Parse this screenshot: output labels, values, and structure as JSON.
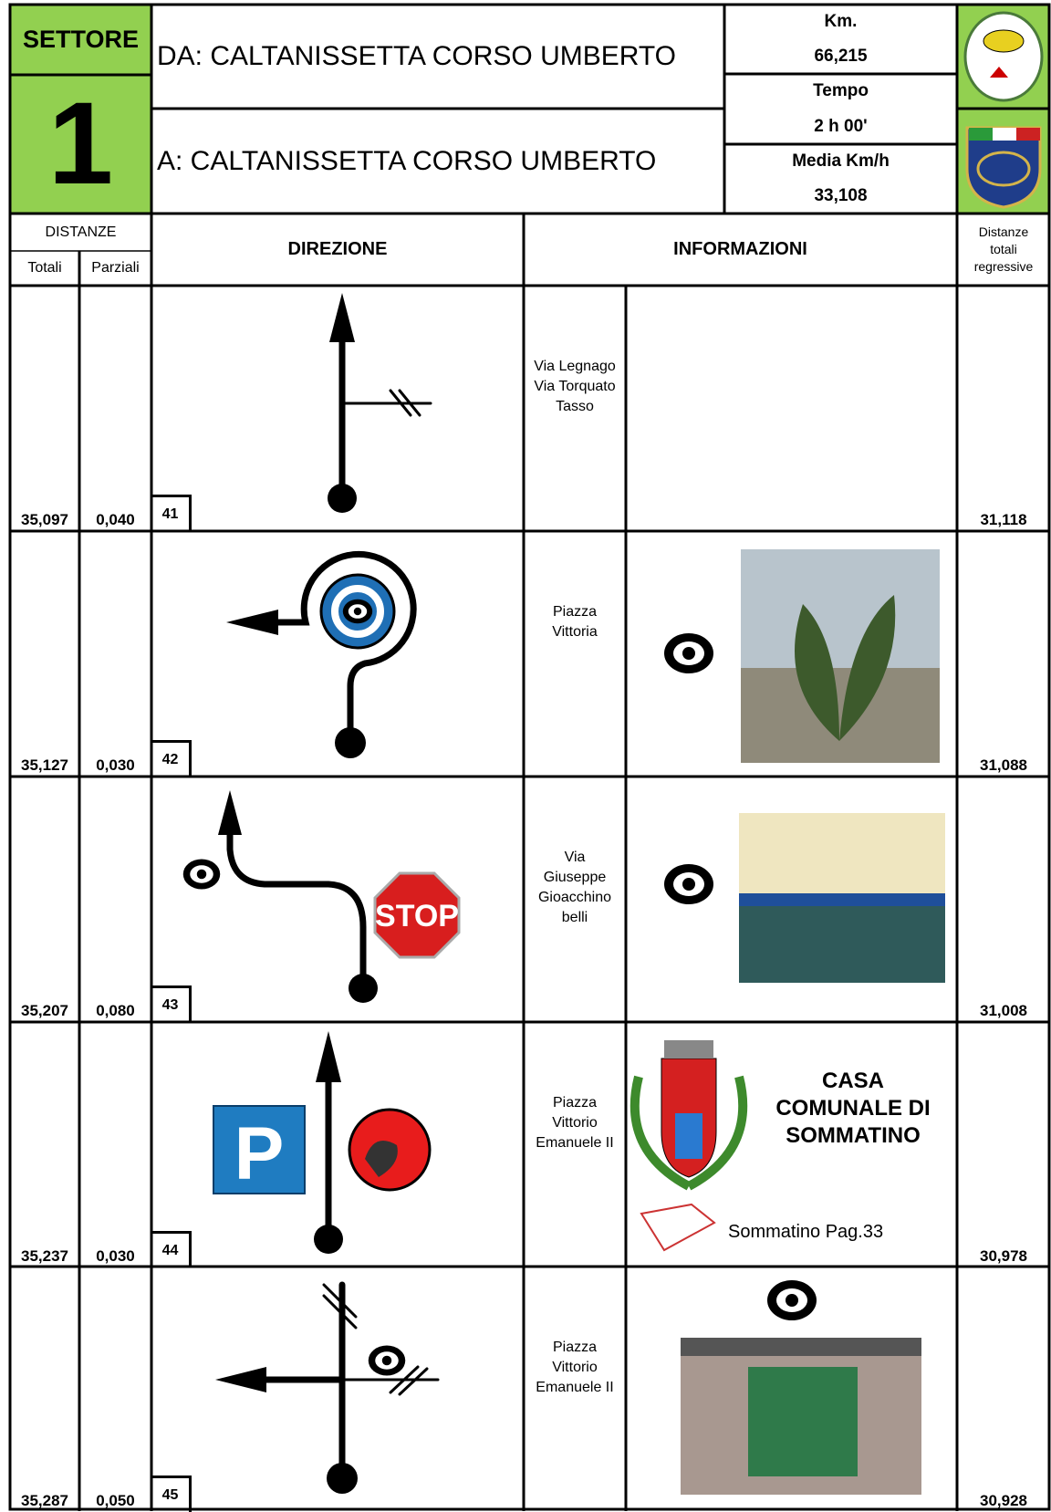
{
  "header": {
    "sector_label": "SETTORE",
    "sector_number": "1",
    "from": "DA: CALTANISSETTA CORSO UMBERTO",
    "to": "A: CALTANISSETTA CORSO UMBERTO",
    "km_label": "Km.",
    "km": "66,215",
    "time_label": "Tempo",
    "time": "2 h 00'",
    "avg_label": "Media Km/h",
    "avg": "33,108"
  },
  "columns": {
    "distances": "DISTANZE",
    "totals": "Totali",
    "partials": "Parziali",
    "direction": "DIREZIONE",
    "info": "INFORMAZIONI",
    "regressive": [
      "Distanze",
      "totali",
      "regressive"
    ]
  },
  "rows": [
    {
      "total": "35,097",
      "partial": "0,040",
      "number": "41",
      "street": [
        "Via Legnago",
        "Via Torquato",
        "Tasso"
      ],
      "regressive": "31,118"
    },
    {
      "total": "35,127",
      "partial": "0,030",
      "number": "42",
      "street": [
        "Piazza",
        "Vittoria"
      ],
      "regressive": "31,088"
    },
    {
      "total": "35,207",
      "partial": "0,080",
      "number": "43",
      "street": [
        "Via",
        "Giuseppe",
        "Gioacchino",
        "belli"
      ],
      "regressive": "31,008"
    },
    {
      "total": "35,237",
      "partial": "0,030",
      "number": "44",
      "street": [
        "Piazza",
        "Vittorio",
        "Emanuele II"
      ],
      "regressive": "30,978",
      "note": [
        "CASA",
        "COMUNALE DI",
        "SOMMATINO"
      ],
      "reference": "Sommatino Pag.33"
    },
    {
      "total": "35,287",
      "partial": "0,050",
      "number": "45",
      "street": [
        "Piazza",
        "Vittorio",
        "Emanuele II"
      ],
      "regressive": "30,928"
    }
  ]
}
